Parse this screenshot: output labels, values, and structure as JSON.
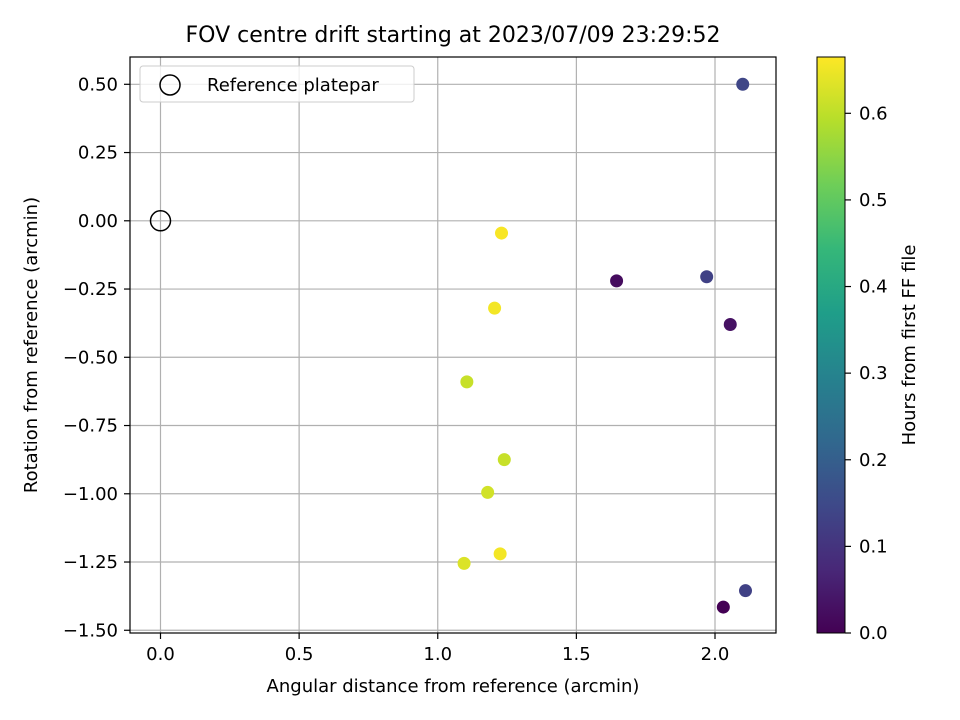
{
  "chart_data": {
    "type": "scatter",
    "title": "FOV centre drift starting at 2023/07/09 23:29:52",
    "xlabel": "Angular distance from reference (arcmin)",
    "ylabel": "Rotation from reference (arcmin)",
    "xlim": [
      -0.11,
      2.22
    ],
    "ylim": [
      -1.51,
      0.6
    ],
    "grid": true,
    "legend": {
      "position": "top-left",
      "entries": [
        "Reference platepar"
      ]
    },
    "x_ticks": [
      0.0,
      0.5,
      1.0,
      1.5,
      2.0
    ],
    "x_tick_labels": [
      "0.0",
      "0.5",
      "1.0",
      "1.5",
      "2.0"
    ],
    "y_ticks": [
      0.5,
      0.25,
      0.0,
      -0.25,
      -0.5,
      -0.75,
      -1.0,
      -1.25,
      -1.5
    ],
    "y_tick_labels": [
      "0.50",
      "0.25",
      "0.00",
      "−0.25",
      "−0.50",
      "−0.75",
      "−1.00",
      "−1.25",
      "−1.50"
    ],
    "reference": {
      "name": "Reference platepar",
      "x": 0.0,
      "y": 0.0
    },
    "colorbar": {
      "label": "Hours from first FF file",
      "range": [
        0.0,
        0.665
      ],
      "ticks": [
        0.0,
        0.1,
        0.2,
        0.3,
        0.4,
        0.5,
        0.6
      ],
      "tick_labels": [
        "0.0",
        "0.1",
        "0.2",
        "0.3",
        "0.4",
        "0.5",
        "0.6"
      ],
      "colormap": [
        "#440154",
        "#482878",
        "#3e4989",
        "#31688e",
        "#26828e",
        "#1f9e89",
        "#35b779",
        "#6ece58",
        "#b5de2b",
        "#fde725"
      ]
    },
    "series": [
      {
        "name": "FOV centre drift",
        "points": [
          {
            "x": 2.03,
            "y": -1.415,
            "hours": 0.0
          },
          {
            "x": 1.645,
            "y": -0.22,
            "hours": 0.02
          },
          {
            "x": 2.055,
            "y": -0.38,
            "hours": 0.03
          },
          {
            "x": 1.97,
            "y": -0.205,
            "hours": 0.13
          },
          {
            "x": 2.11,
            "y": -1.355,
            "hours": 0.13
          },
          {
            "x": 2.1,
            "y": 0.5,
            "hours": 0.14
          },
          {
            "x": 1.105,
            "y": -0.59,
            "hours": 0.61
          },
          {
            "x": 1.24,
            "y": -0.875,
            "hours": 0.61
          },
          {
            "x": 1.18,
            "y": -0.995,
            "hours": 0.62
          },
          {
            "x": 1.095,
            "y": -1.255,
            "hours": 0.63
          },
          {
            "x": 1.205,
            "y": -0.32,
            "hours": 0.655
          },
          {
            "x": 1.225,
            "y": -1.22,
            "hours": 0.655
          },
          {
            "x": 1.23,
            "y": -0.045,
            "hours": 0.66
          }
        ]
      }
    ]
  }
}
